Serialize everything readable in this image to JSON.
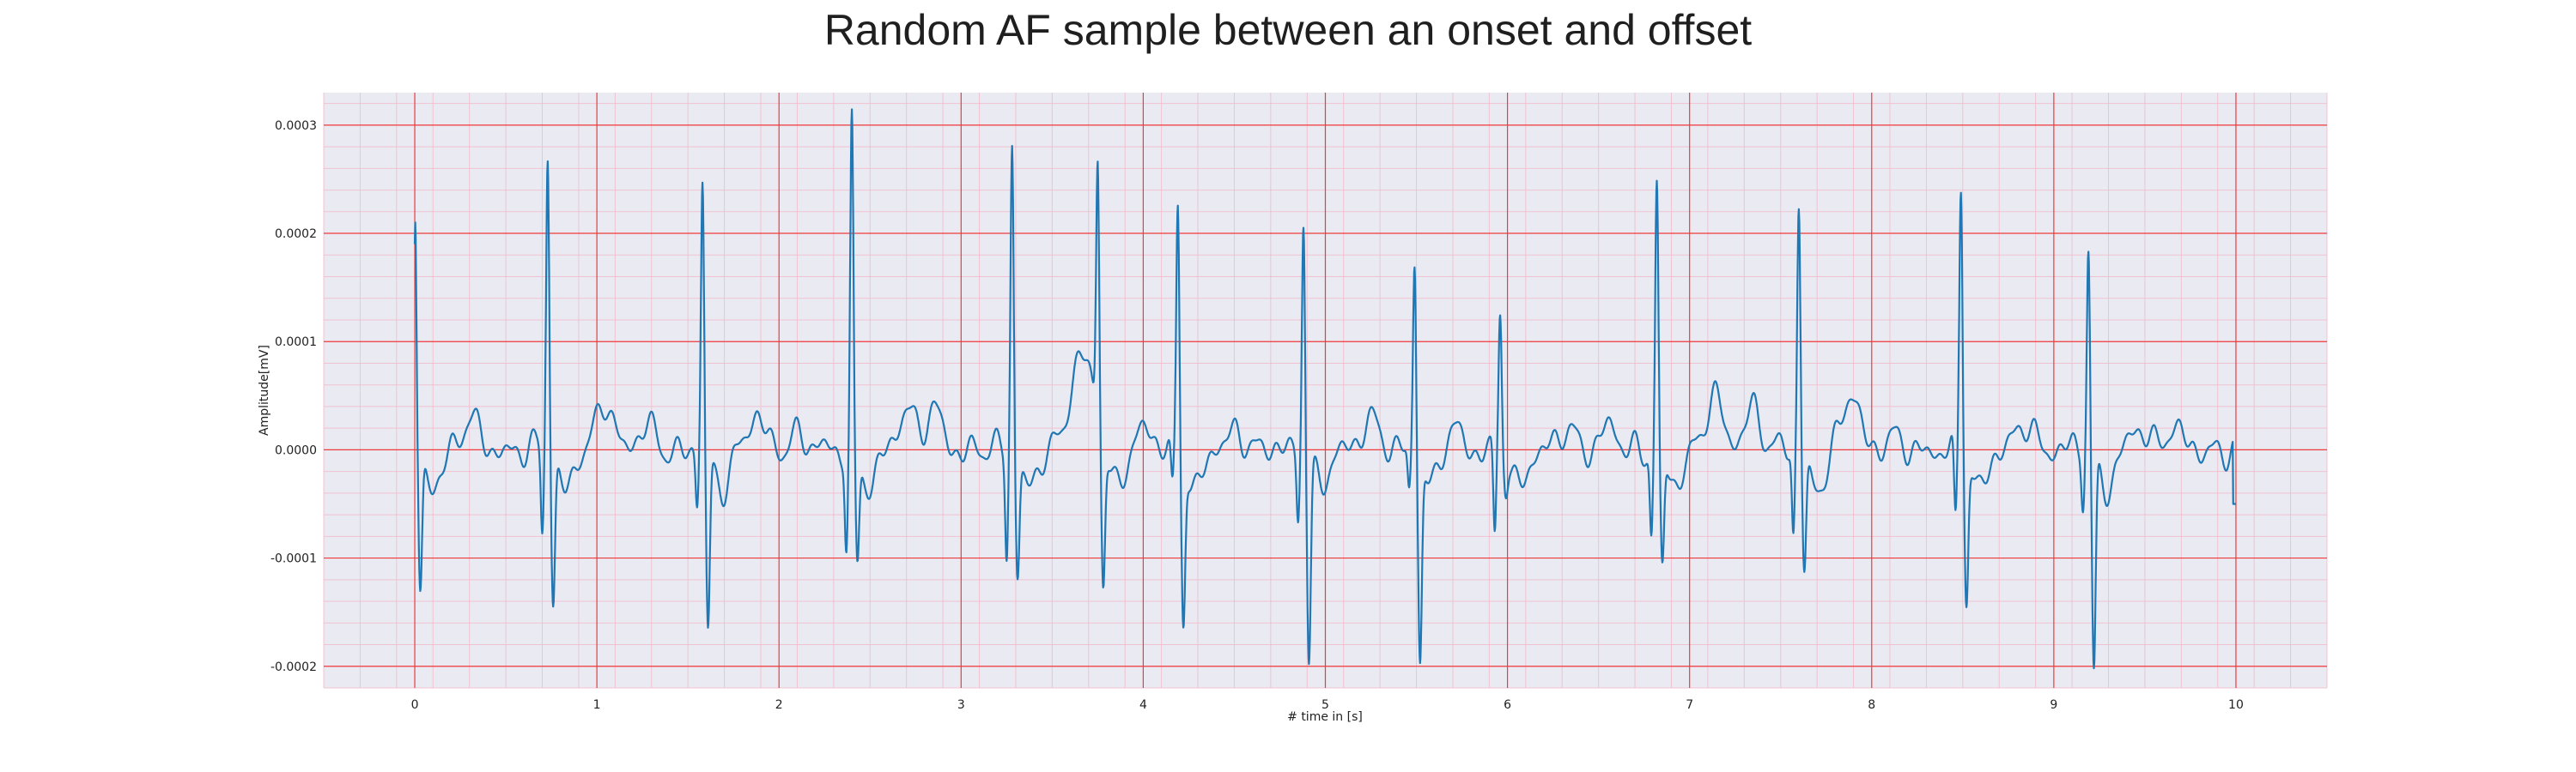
{
  "chart_data": {
    "type": "line",
    "title": "Random AF sample between an onset and offset",
    "xlabel": "# time in [s]",
    "ylabel": "Amplitude[mV]",
    "xlim": [
      -0.5,
      10.5
    ],
    "ylim": [
      -0.00022,
      0.00033
    ],
    "xticks": [
      0,
      1,
      2,
      3,
      4,
      5,
      6,
      7,
      8,
      9,
      10
    ],
    "xtick_labels": [
      "0",
      "1",
      "2",
      "3",
      "4",
      "5",
      "6",
      "7",
      "8",
      "9",
      "10"
    ],
    "yticks": [
      -0.0002,
      -0.0001,
      0.0,
      0.0001,
      0.0002,
      0.0003
    ],
    "ytick_labels": [
      "-0.0002",
      "-0.0001",
      "0.0000",
      "0.0001",
      "0.0002",
      "0.0003"
    ],
    "grid": true,
    "major_grid_color": "#ee3b3b",
    "minor_grid_color": "#f2b9c8",
    "background_color": "#eaeaf2",
    "line_color": "#1f77b4",
    "beats": [
      {
        "t": 0.0,
        "peak": 0.000228,
        "trough": -0.00013,
        "lead": 0.0
      },
      {
        "t": 0.73,
        "peak": 0.000277,
        "trough": -0.000132,
        "lead": -7.8e-05
      },
      {
        "t": 1.58,
        "peak": 0.000247,
        "trough": -0.000165,
        "lead": -4.8e-05
      },
      {
        "t": 2.4,
        "peak": 0.000303,
        "trough": -0.0001,
        "lead": -8.5e-05
      },
      {
        "t": 3.28,
        "peak": 0.000286,
        "trough": -0.000105,
        "lead": -9.5e-05
      },
      {
        "t": 3.75,
        "peak": 0.000242,
        "trough": -0.000128,
        "lead": 0.0
      },
      {
        "t": 4.19,
        "peak": 0.000226,
        "trough": -0.000147,
        "lead": -4e-05
      },
      {
        "t": 4.88,
        "peak": 0.000221,
        "trough": -0.000182,
        "lead": -6e-05
      },
      {
        "t": 5.49,
        "peak": 0.00018,
        "trough": -0.000182,
        "lead": -3.8e-05
      },
      {
        "t": 5.96,
        "peak": 0.000126,
        "trough": -2.5e-05,
        "lead": -8.3e-05
      },
      {
        "t": 6.82,
        "peak": 0.000248,
        "trough": -0.000107,
        "lead": -7.3e-05
      },
      {
        "t": 7.6,
        "peak": 0.000227,
        "trough": -0.000105,
        "lead": -8e-05
      },
      {
        "t": 8.49,
        "peak": 0.000246,
        "trough": -0.00013,
        "lead": -7.5e-05
      },
      {
        "t": 9.19,
        "peak": 0.00019,
        "trough": -0.0002,
        "lead": -4.5e-05
      }
    ],
    "baseline_waves": [
      {
        "t": 0.3,
        "v": 2.8e-05
      },
      {
        "t": 1.05,
        "v": 4.5e-05
      },
      {
        "t": 1.27,
        "v": 2e-05
      },
      {
        "t": 1.87,
        "v": 3e-05
      },
      {
        "t": 2.1,
        "v": 1.5e-05
      },
      {
        "t": 2.7,
        "v": 4e-05
      },
      {
        "t": 2.85,
        "v": 3.5e-05
      },
      {
        "t": 3.63,
        "v": 6.5e-05
      },
      {
        "t": 3.7,
        "v": 5.5e-05
      },
      {
        "t": 4.0,
        "v": 2e-05
      },
      {
        "t": 4.52,
        "v": 1.8e-05
      },
      {
        "t": 5.24,
        "v": 3e-05
      },
      {
        "t": 5.7,
        "v": 2e-05
      },
      {
        "t": 6.33,
        "v": 1.8e-05
      },
      {
        "t": 6.55,
        "v": 2e-05
      },
      {
        "t": 7.13,
        "v": 5.2e-05
      },
      {
        "t": 7.35,
        "v": 4e-05
      },
      {
        "t": 7.89,
        "v": 5.2e-05
      },
      {
        "t": 8.1,
        "v": 1e-05
      },
      {
        "t": 8.85,
        "v": 2.5e-05
      },
      {
        "t": 9.48,
        "v": 2e-05
      },
      {
        "t": 9.65,
        "v": 2e-05
      }
    ],
    "end_value": -5e-05
  }
}
